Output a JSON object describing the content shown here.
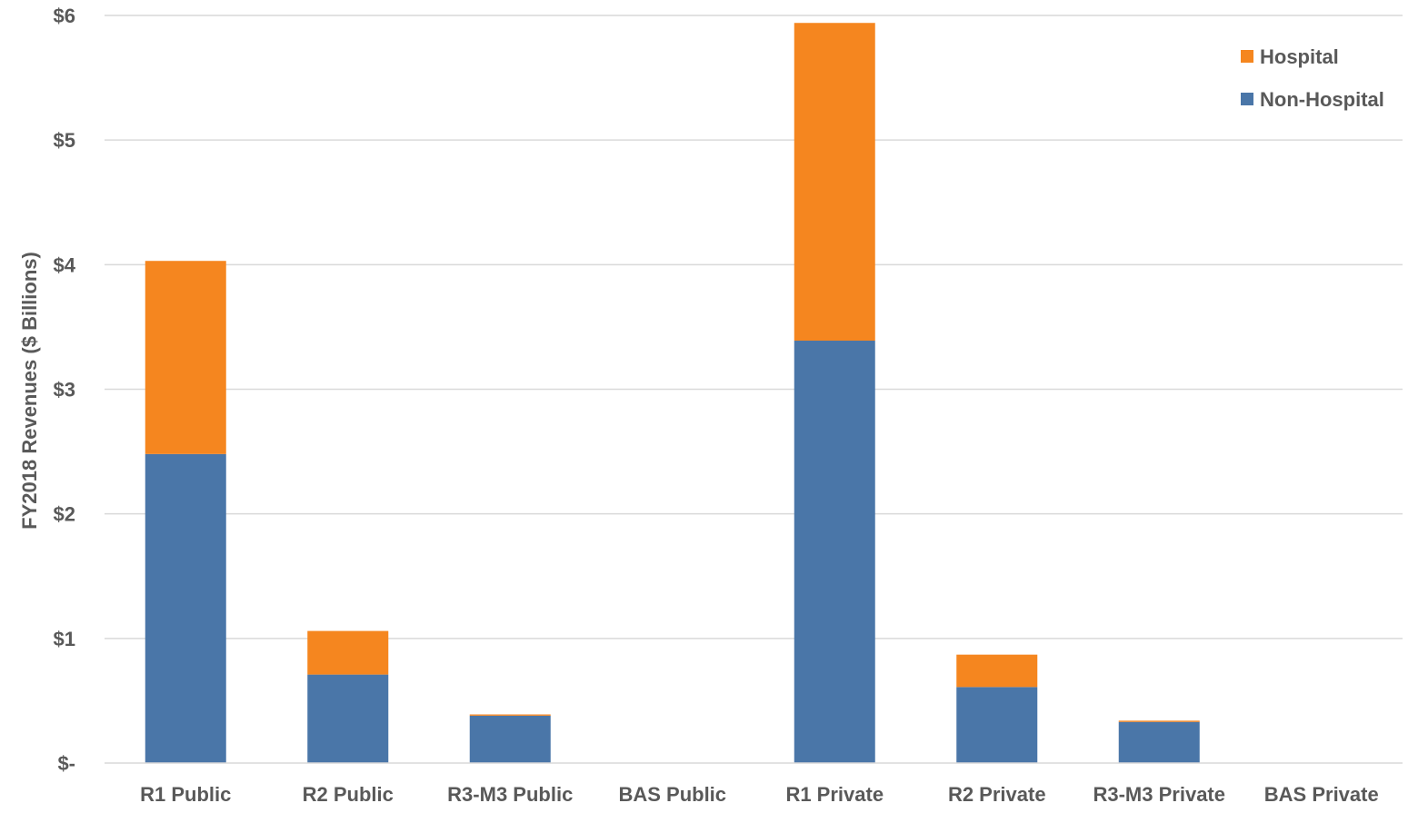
{
  "chart_data": {
    "type": "bar",
    "stacked": true,
    "categories": [
      "R1 Public",
      "R2 Public",
      "R3-M3 Public",
      "BAS Public",
      "R1 Private",
      "R2 Private",
      "R3-M3 Private",
      "BAS Private"
    ],
    "series": [
      {
        "name": "Non-Hospital",
        "color": "#4a76a8",
        "values": [
          2.48,
          0.71,
          0.38,
          0,
          3.39,
          0.61,
          0.33,
          0
        ]
      },
      {
        "name": "Hospital",
        "color": "#f5861f",
        "values": [
          1.55,
          0.35,
          0.01,
          0,
          2.55,
          0.26,
          0.01,
          0
        ]
      }
    ],
    "ylabel": "FY2018 Revenues ($ Billions)",
    "ylim": [
      0,
      6
    ],
    "yticks": [
      {
        "value": 0,
        "label": "$-"
      },
      {
        "value": 1,
        "label": "$1"
      },
      {
        "value": 2,
        "label": "$2"
      },
      {
        "value": 3,
        "label": "$3"
      },
      {
        "value": 4,
        "label": "$4"
      },
      {
        "value": 5,
        "label": "$5"
      },
      {
        "value": 6,
        "label": "$6"
      }
    ],
    "grid": true,
    "legend": {
      "position": "top-right",
      "order": [
        "Hospital",
        "Non-Hospital"
      ]
    }
  }
}
